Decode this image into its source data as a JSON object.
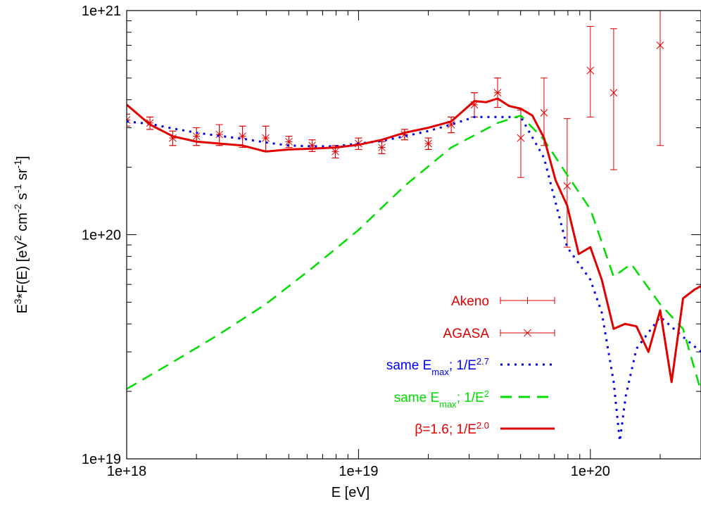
{
  "chart_data": {
    "type": "line",
    "title": "",
    "xlabel": "E [eV]",
    "ylabel": {
      "main": "E",
      "exp1": "3",
      "mid1": "*F(E) [eV",
      "exp2": "2",
      "mid2": " cm",
      "exp3": "-2",
      "mid3": " s",
      "exp4": "-1",
      "mid4": " sr",
      "exp5": "-1",
      "end": "]"
    },
    "xscale": "log",
    "yscale": "log",
    "xlim": [
      1e+18,
      3e+20
    ],
    "ylim": [
      1e+19,
      1e+21
    ],
    "x_ticks": [
      {
        "value": 1e+18,
        "label": "1e+18"
      },
      {
        "value": 1e+19,
        "label": "1e+19"
      },
      {
        "value": 1e+20,
        "label": "1e+20"
      }
    ],
    "y_ticks": [
      {
        "value": 1e+19,
        "label": "1e+19"
      },
      {
        "value": 1e+20,
        "label": "1e+20"
      },
      {
        "value": 1e+21,
        "label": "1e+21"
      }
    ],
    "legend_position": "bottom-right",
    "series": [
      {
        "name": "Akeno",
        "kind": "errorbar",
        "marker": "plus",
        "color": "#e00000",
        "points": [
          {
            "x": 1e+18,
            "y": 3.25e+20,
            "ylo": 3.05e+20,
            "yhi": 3.45e+20
          },
          {
            "x": 1.26e+18,
            "y": 3.15e+20,
            "ylo": 2.95e+20,
            "yhi": 3.35e+20
          },
          {
            "x": 1.58e+18,
            "y": 2.7e+20,
            "ylo": 2.5e+20,
            "yhi": 2.9e+20
          },
          {
            "x": 2e+18,
            "y": 2.75e+20,
            "ylo": 2.5e+20,
            "yhi": 3e+20
          },
          {
            "x": 2.51e+18,
            "y": 2.8e+20,
            "ylo": 2.5e+20,
            "yhi": 3.1e+20
          },
          {
            "x": 3.16e+18,
            "y": 2.75e+20,
            "ylo": 2.45e+20,
            "yhi": 3.05e+20
          },
          {
            "x": 3.98e+18,
            "y": 2.7e+20,
            "ylo": 2.35e+20,
            "yhi": 3.05e+20
          },
          {
            "x": 5.01e+18,
            "y": 2.6e+20,
            "ylo": 2.45e+20,
            "yhi": 2.75e+20
          },
          {
            "x": 6.31e+18,
            "y": 2.5e+20,
            "ylo": 2.35e+20,
            "yhi": 2.65e+20
          },
          {
            "x": 7.94e+18,
            "y": 2.35e+20,
            "ylo": 2.2e+20,
            "yhi": 2.5e+20
          },
          {
            "x": 1e+19,
            "y": 2.55e+20,
            "ylo": 2.4e+20,
            "yhi": 2.7e+20
          },
          {
            "x": 1.26e+19,
            "y": 2.45e+20,
            "ylo": 2.3e+20,
            "yhi": 2.6e+20
          },
          {
            "x": 1.58e+19,
            "y": 2.8e+20,
            "ylo": 2.65e+20,
            "yhi": 2.95e+20
          },
          {
            "x": 2e+19,
            "y": 2.55e+20,
            "ylo": 2.4e+20,
            "yhi": 2.7e+20
          },
          {
            "x": 2.51e+19,
            "y": 3.1e+20,
            "ylo": 2.85e+20,
            "yhi": 3.35e+20
          },
          {
            "x": 3.16e+19,
            "y": 3.8e+20,
            "ylo": 3.35e+20,
            "yhi": 4.3e+20
          },
          {
            "x": 3.98e+19,
            "y": 4.3e+20,
            "ylo": 3.7e+20,
            "yhi": 5e+20
          }
        ]
      },
      {
        "name": "AGASA",
        "kind": "errorbar",
        "marker": "cross",
        "color": "#e00000",
        "points": [
          {
            "x": 1e+18,
            "y": 3.25e+20,
            "ylo": 3.05e+20,
            "yhi": 3.45e+20
          },
          {
            "x": 1.26e+18,
            "y": 3.15e+20,
            "ylo": 2.95e+20,
            "yhi": 3.35e+20
          },
          {
            "x": 1.58e+18,
            "y": 2.7e+20,
            "ylo": 2.5e+20,
            "yhi": 2.9e+20
          },
          {
            "x": 2e+18,
            "y": 2.75e+20,
            "ylo": 2.5e+20,
            "yhi": 3e+20
          },
          {
            "x": 2.51e+18,
            "y": 2.8e+20,
            "ylo": 2.5e+20,
            "yhi": 3.1e+20
          },
          {
            "x": 3.16e+18,
            "y": 2.75e+20,
            "ylo": 2.45e+20,
            "yhi": 3.05e+20
          },
          {
            "x": 3.98e+18,
            "y": 2.7e+20,
            "ylo": 2.35e+20,
            "yhi": 3.05e+20
          },
          {
            "x": 5.01e+18,
            "y": 2.6e+20,
            "ylo": 2.45e+20,
            "yhi": 2.75e+20
          },
          {
            "x": 6.31e+18,
            "y": 2.5e+20,
            "ylo": 2.35e+20,
            "yhi": 2.65e+20
          },
          {
            "x": 7.94e+18,
            "y": 2.35e+20,
            "ylo": 2.2e+20,
            "yhi": 2.5e+20
          },
          {
            "x": 1e+19,
            "y": 2.55e+20,
            "ylo": 2.4e+20,
            "yhi": 2.7e+20
          },
          {
            "x": 1.26e+19,
            "y": 2.45e+20,
            "ylo": 2.3e+20,
            "yhi": 2.6e+20
          },
          {
            "x": 1.58e+19,
            "y": 2.8e+20,
            "ylo": 2.65e+20,
            "yhi": 2.95e+20
          },
          {
            "x": 2e+19,
            "y": 2.55e+20,
            "ylo": 2.4e+20,
            "yhi": 2.7e+20
          },
          {
            "x": 2.51e+19,
            "y": 3.1e+20,
            "ylo": 2.85e+20,
            "yhi": 3.35e+20
          },
          {
            "x": 3.16e+19,
            "y": 3.8e+20,
            "ylo": 3.35e+20,
            "yhi": 4.3e+20
          },
          {
            "x": 3.98e+19,
            "y": 4.3e+20,
            "ylo": 3.7e+20,
            "yhi": 5e+20
          },
          {
            "x": 5.01e+19,
            "y": 2.7e+20,
            "ylo": 1.8e+20,
            "yhi": 3.6e+20
          },
          {
            "x": 6.31e+19,
            "y": 3.5e+20,
            "ylo": 2.5e+20,
            "yhi": 5e+20
          },
          {
            "x": 7.94e+19,
            "y": 1.65e+20,
            "ylo": 8.8e+19,
            "yhi": 3.3e+20
          },
          {
            "x": 1e+20,
            "y": 5.4e+20,
            "ylo": 3.35e+20,
            "yhi": 8.5e+20
          },
          {
            "x": 1.26e+20,
            "y": 4.3e+20,
            "ylo": 1.95e+20,
            "yhi": 8.3e+20
          },
          {
            "x": 2e+20,
            "y": 7e+20,
            "ylo": 2.5e+20,
            "yhi": 1e+21
          }
        ]
      },
      {
        "name": "same E_max; 1/E^2.7",
        "kind": "line",
        "dash": "dotted",
        "color": "#0000ee",
        "x": [
          1e+18,
          1.26e+18,
          1.58e+18,
          2e+18,
          2.51e+18,
          3.16e+18,
          3.98e+18,
          5.01e+18,
          6.31e+18,
          7.94e+18,
          1e+19,
          1.26e+19,
          1.58e+19,
          2e+19,
          2.51e+19,
          3.16e+19,
          3.98e+19,
          5.01e+19,
          6.31e+19,
          7.94e+19,
          1e+20,
          1.12e+20,
          1.26e+20,
          1.34e+20,
          1.42e+20,
          1.58e+20,
          2e+20,
          2.51e+20,
          3e+20
        ],
        "y": [
          3.2e+20,
          3.12e+20,
          2.98e+20,
          2.85e+20,
          2.76e+20,
          2.68e+20,
          2.58e+20,
          2.5e+20,
          2.48e+20,
          2.48e+20,
          2.55e+20,
          2.62e+20,
          2.75e+20,
          2.9e+20,
          3.1e+20,
          3.35e+20,
          3.35e+20,
          3.35e+20,
          2.2e+20,
          8.8e+19,
          6.3e+19,
          4.5e+19,
          2.2e+19,
          1.2e+19,
          1.9e+19,
          3.1e+19,
          4.3e+19,
          3.5e+19,
          3e+19
        ]
      },
      {
        "name": "same E_max; 1/E^2",
        "kind": "line",
        "dash": "dashed",
        "color": "#00dd00",
        "x": [
          1e+18,
          1.58e+18,
          2.51e+18,
          3.98e+18,
          6.31e+18,
          1e+19,
          1.58e+19,
          2.51e+19,
          3.98e+19,
          5.01e+19,
          6.31e+19,
          7.94e+19,
          1e+20,
          1.26e+20,
          1.5e+20,
          2e+20,
          2.51e+20,
          3e+20
        ],
        "y": [
          2.05e+19,
          2.7e+19,
          3.6e+19,
          4.9e+19,
          7.1e+19,
          1.05e+20,
          1.65e+20,
          2.45e+20,
          3.15e+20,
          3.4e+20,
          2.65e+20,
          1.85e+20,
          1.3e+20,
          6.5e+19,
          7.4e+19,
          4.9e+19,
          3.8e+19,
          2e+19
        ]
      },
      {
        "name": "β=1.6; 1/E^2.0",
        "kind": "line",
        "dash": "solid",
        "color": "#e00000",
        "x": [
          1e+18,
          1.26e+18,
          1.58e+18,
          2e+18,
          2.51e+18,
          3.16e+18,
          3.98e+18,
          5.01e+18,
          6.31e+18,
          7.94e+18,
          1e+19,
          1.26e+19,
          1.58e+19,
          2e+19,
          2.51e+19,
          3.16e+19,
          3.55e+19,
          3.98e+19,
          4.47e+19,
          5.01e+19,
          5.62e+19,
          6.31e+19,
          7.08e+19,
          7.94e+19,
          8.91e+19,
          1e+20,
          1.12e+20,
          1.26e+20,
          1.41e+20,
          1.58e+20,
          1.78e+20,
          2e+20,
          2.24e+20,
          2.51e+20,
          2.82e+20,
          3e+20
        ],
        "y": [
          3.8e+20,
          3.1e+20,
          2.75e+20,
          2.6e+20,
          2.55e+20,
          2.5e+20,
          2.35e+20,
          2.4e+20,
          2.42e+20,
          2.45e+20,
          2.52e+20,
          2.65e+20,
          2.85e+20,
          3e+20,
          3.2e+20,
          3.95e+20,
          3.9e+20,
          4.05e+20,
          3.75e+20,
          3.65e+20,
          3.4e+20,
          2.7e+20,
          1.75e+20,
          1.35e+20,
          8.2e+19,
          8.8e+19,
          6.3e+19,
          3.8e+19,
          4e+19,
          3.9e+19,
          3e+19,
          4.6e+19,
          2.2e+19,
          5.2e+19,
          5.7e+19,
          5.9e+19
        ]
      }
    ],
    "legend_items": [
      {
        "text": "Akeno",
        "sub": "",
        "sup": "",
        "tail": "",
        "color": "#e00000"
      },
      {
        "text": "AGASA",
        "sub": "",
        "sup": "",
        "tail": "",
        "color": "#e00000"
      },
      {
        "text": "same E",
        "sub": "max",
        "mid": "; 1/E",
        "sup": "2.7",
        "tail": "",
        "color": "#0000ee"
      },
      {
        "text": "same E",
        "sub": "max",
        "mid": "; 1/E",
        "sup": "2",
        "tail": "",
        "color": "#00dd00"
      },
      {
        "text": "β=1.6;  1/E",
        "sub": "",
        "mid": "",
        "sup": "2.0",
        "tail": "",
        "color": "#e00000"
      }
    ]
  }
}
